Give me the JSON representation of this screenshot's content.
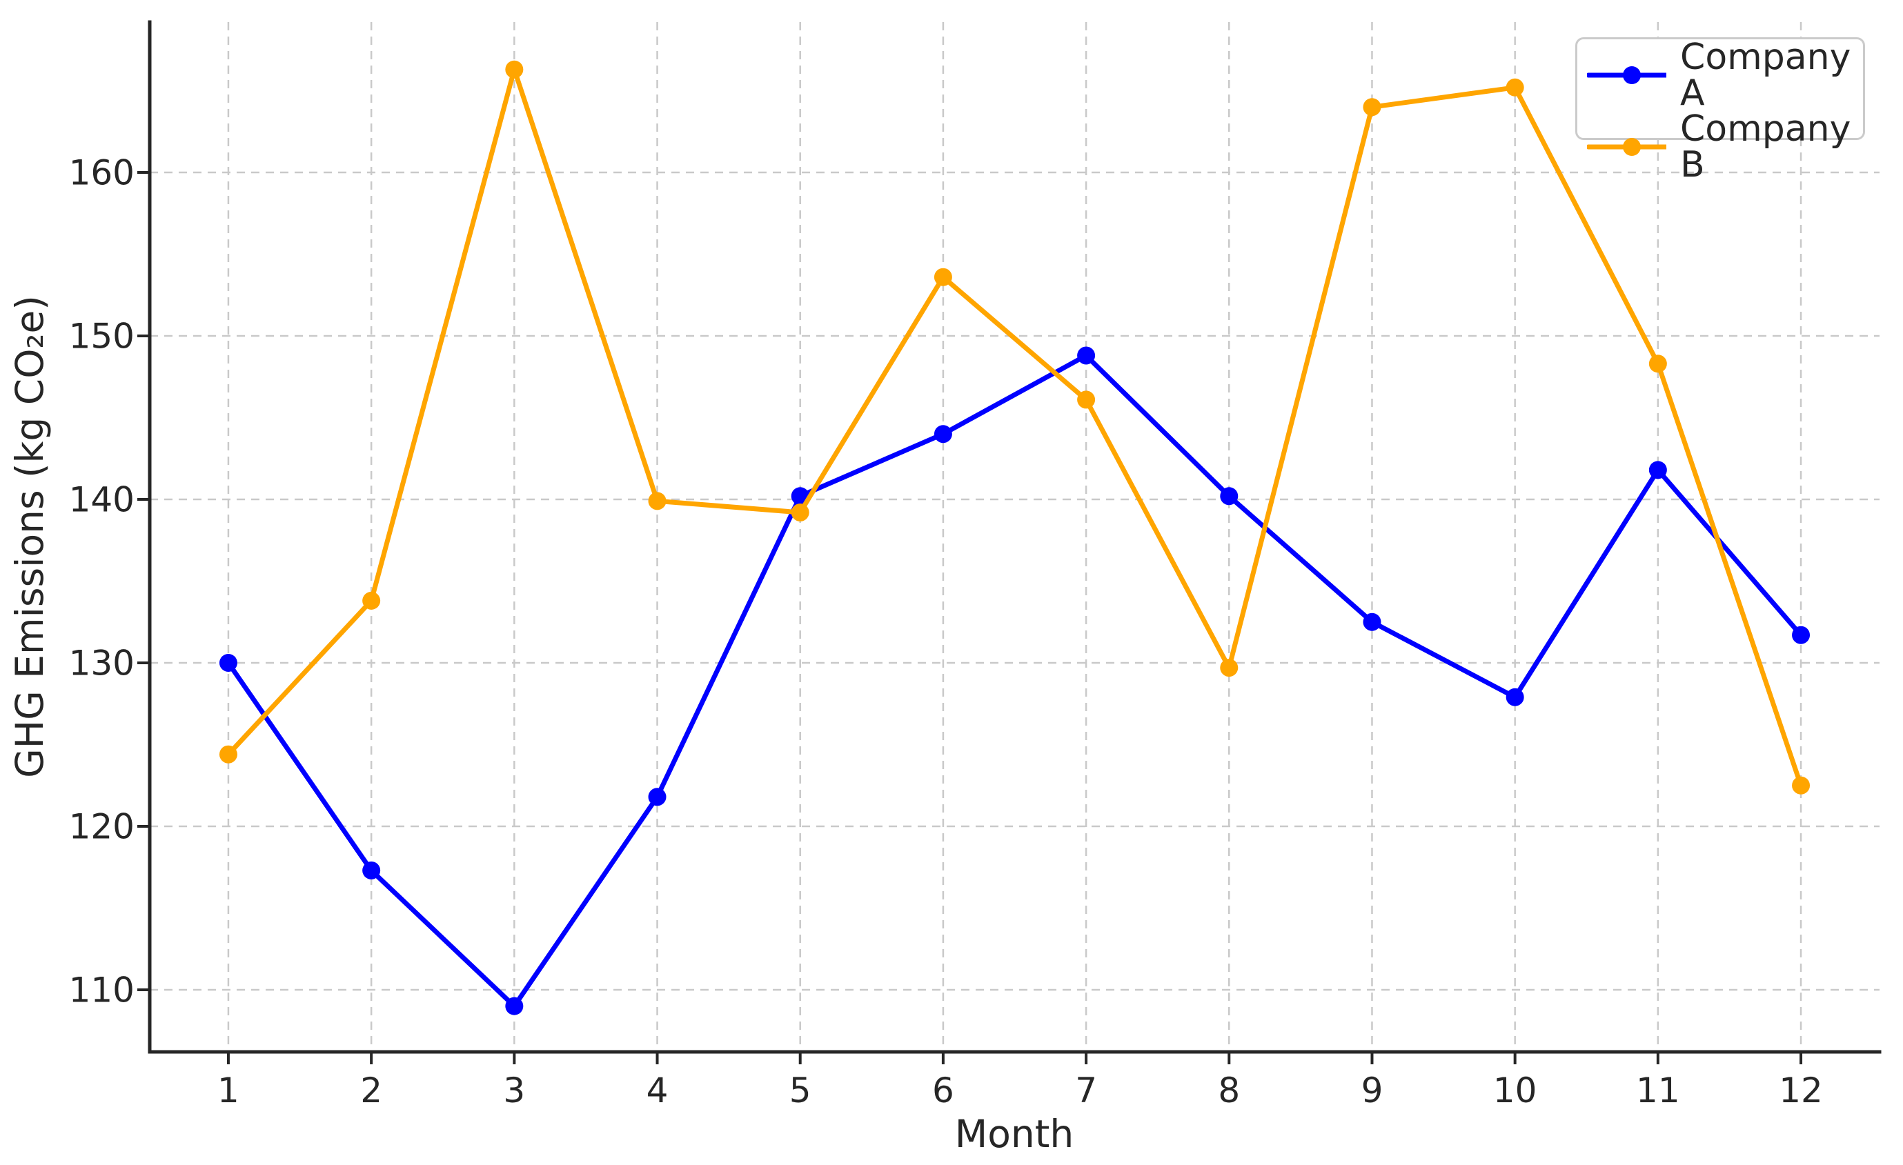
{
  "chart_data": {
    "type": "line",
    "x": [
      1,
      2,
      3,
      4,
      5,
      6,
      7,
      8,
      9,
      10,
      11,
      12
    ],
    "series": [
      {
        "name": "Company A",
        "color": "#0000ff",
        "values": [
          130.0,
          117.3,
          109.0,
          121.8,
          140.2,
          144.0,
          148.8,
          140.2,
          132.5,
          127.9,
          141.8,
          131.7
        ]
      },
      {
        "name": "Company B",
        "color": "#ffa500",
        "values": [
          124.4,
          133.8,
          166.3,
          139.9,
          139.2,
          153.6,
          146.1,
          129.7,
          164.0,
          165.2,
          148.3,
          122.5
        ]
      }
    ],
    "title": "",
    "xlabel": "Month",
    "ylabel": "GHG Emissions (kg CO₂e)",
    "xticks": [
      1,
      2,
      3,
      4,
      5,
      6,
      7,
      8,
      9,
      10,
      11,
      12
    ],
    "yticks": [
      110,
      120,
      130,
      140,
      150,
      160
    ],
    "xlim": [
      0.45,
      12.55
    ],
    "ylim": [
      106.2,
      169.2
    ],
    "grid": true,
    "grid_style": "dashed",
    "legend_position": "upper right",
    "colors": {
      "grid": "#c9c9c9",
      "axis": "#262626",
      "text": "#262626",
      "background": "#ffffff"
    }
  }
}
